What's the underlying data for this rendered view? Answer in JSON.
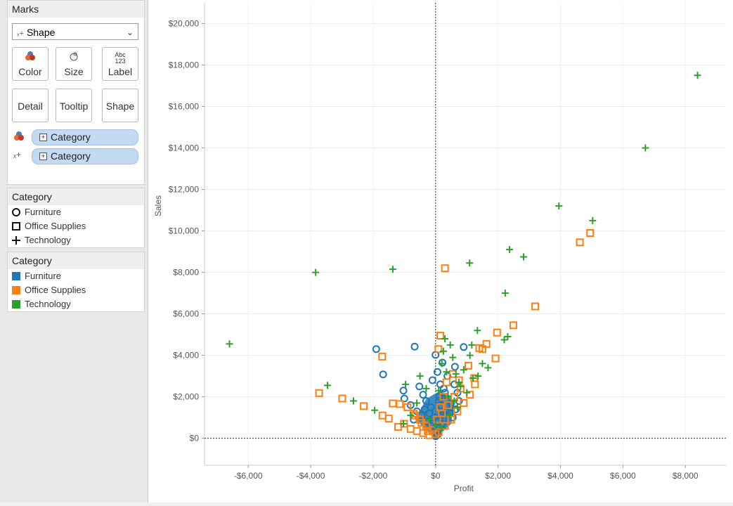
{
  "marks": {
    "title": "Marks",
    "mark_type": "Shape",
    "buttons": [
      "Color",
      "Size",
      "Label",
      "Detail",
      "Tooltip",
      "Shape"
    ],
    "label_icon_text": "Abc\n123",
    "pills": [
      {
        "icon": "color-icon",
        "label": "Category"
      },
      {
        "icon": "shape-icon",
        "label": "Category"
      }
    ]
  },
  "shape_legend": {
    "title": "Category",
    "items": [
      {
        "label": "Furniture",
        "shape": "circle"
      },
      {
        "label": "Office Supplies",
        "shape": "square"
      },
      {
        "label": "Technology",
        "shape": "plus"
      }
    ]
  },
  "color_legend": {
    "title": "Category",
    "items": [
      {
        "label": "Furniture",
        "color": "#1f77b4"
      },
      {
        "label": "Office Supplies",
        "color": "#ff7f0e"
      },
      {
        "label": "Technology",
        "color": "#2ca02c"
      }
    ]
  },
  "chart_data": {
    "type": "scatter",
    "title": "",
    "xlabel": "Profit",
    "ylabel": "Sales",
    "xlim": [
      -7400,
      9300
    ],
    "ylim": [
      -1300,
      21000
    ],
    "xticks": [
      -6000,
      -4000,
      -2000,
      0,
      2000,
      4000,
      6000,
      8000
    ],
    "xtick_labels": [
      "-$6,000",
      "-$4,000",
      "-$2,000",
      "$0",
      "$2,000",
      "$4,000",
      "$6,000",
      "$8,000"
    ],
    "yticks": [
      0,
      2000,
      4000,
      6000,
      8000,
      10000,
      12000,
      14000,
      16000,
      18000,
      20000
    ],
    "ytick_labels": [
      "$0",
      "$2,000",
      "$4,000",
      "$6,000",
      "$8,000",
      "$10,000",
      "$12,000",
      "$14,000",
      "$16,000",
      "$18,000",
      "$20,000"
    ],
    "series": [
      {
        "name": "Furniture",
        "shape": "circle",
        "color": "#1f77b4",
        "points": [
          [
            -1900,
            4300
          ],
          [
            -670,
            4420
          ],
          [
            -1680,
            3080
          ],
          [
            -3,
            4020
          ],
          [
            220,
            3650
          ],
          [
            900,
            4400
          ],
          [
            620,
            3450
          ],
          [
            -1030,
            2300
          ],
          [
            -1000,
            1920
          ],
          [
            -800,
            1600
          ],
          [
            -520,
            2500
          ],
          [
            -400,
            2100
          ],
          [
            -300,
            1800
          ],
          [
            -150,
            1500
          ],
          [
            -100,
            2800
          ],
          [
            60,
            3200
          ],
          [
            150,
            2600
          ],
          [
            300,
            2200
          ],
          [
            400,
            1900
          ],
          [
            500,
            1700
          ],
          [
            650,
            1400
          ],
          [
            -200,
            1200
          ],
          [
            -50,
            1000
          ],
          [
            50,
            800
          ],
          [
            100,
            600
          ],
          [
            180,
            1100
          ],
          [
            250,
            900
          ],
          [
            330,
            1300
          ],
          [
            -250,
            800
          ],
          [
            -150,
            600
          ],
          [
            -80,
            400
          ],
          [
            20,
            300
          ],
          [
            80,
            200
          ],
          [
            130,
            500
          ],
          [
            210,
            700
          ],
          [
            350,
            1600
          ],
          [
            450,
            1200
          ],
          [
            550,
            1000
          ],
          [
            700,
            2200
          ],
          [
            750,
            1800
          ],
          [
            600,
            2600
          ],
          [
            -350,
            1400
          ],
          [
            -450,
            1100
          ],
          [
            -600,
            1300
          ],
          [
            -700,
            900
          ],
          [
            0,
            100
          ],
          [
            40,
            150
          ],
          [
            -30,
            250
          ],
          [
            110,
            1800
          ],
          [
            260,
            2400
          ],
          [
            380,
            3000
          ],
          [
            120,
            2000
          ],
          [
            160,
            1600
          ],
          [
            200,
            1300
          ]
        ]
      },
      {
        "name": "Office Supplies",
        "shape": "square",
        "color": "#ff7f0e",
        "points": [
          [
            300,
            8200
          ],
          [
            4950,
            9900
          ],
          [
            4620,
            9450
          ],
          [
            3190,
            6360
          ],
          [
            2490,
            5450
          ],
          [
            1970,
            5100
          ],
          [
            1630,
            4550
          ],
          [
            1400,
            4350
          ],
          [
            1920,
            3850
          ],
          [
            1260,
            2600
          ],
          [
            1240,
            2900
          ],
          [
            150,
            4950
          ],
          [
            90,
            4300
          ],
          [
            -1710,
            3940
          ],
          [
            -1700,
            1100
          ],
          [
            -2300,
            1550
          ],
          [
            -2990,
            1920
          ],
          [
            -3730,
            2180
          ],
          [
            -1500,
            950
          ],
          [
            -1200,
            550
          ],
          [
            -1010,
            700
          ],
          [
            -1370,
            1680
          ],
          [
            -1150,
            1650
          ],
          [
            -800,
            450
          ],
          [
            -600,
            350
          ],
          [
            -400,
            250
          ],
          [
            -200,
            150
          ],
          [
            -700,
            1200
          ],
          [
            -500,
            900
          ],
          [
            -300,
            600
          ],
          [
            -100,
            400
          ],
          [
            100,
            300
          ],
          [
            300,
            600
          ],
          [
            500,
            900
          ],
          [
            700,
            1300
          ],
          [
            900,
            1700
          ],
          [
            1100,
            2100
          ],
          [
            800,
            2400
          ],
          [
            600,
            2000
          ],
          [
            400,
            1600
          ],
          [
            200,
            1200
          ],
          [
            -900,
            1500
          ],
          [
            -650,
            1100
          ],
          [
            350,
            2700
          ],
          [
            550,
            3100
          ],
          [
            1500,
            4300
          ],
          [
            1050,
            3500
          ],
          [
            750,
            2800
          ],
          [
            -450,
            750
          ],
          [
            -250,
            350
          ],
          [
            0,
            200
          ],
          [
            50,
            900
          ],
          [
            150,
            1500
          ],
          [
            250,
            2000
          ]
        ]
      },
      {
        "name": "Technology",
        "shape": "plus",
        "color": "#2ca02c",
        "points": [
          [
            8390,
            17500
          ],
          [
            6720,
            14000
          ],
          [
            3950,
            11200
          ],
          [
            5030,
            10500
          ],
          [
            2370,
            9100
          ],
          [
            2820,
            8750
          ],
          [
            1090,
            8450
          ],
          [
            -1370,
            8150
          ],
          [
            -3840,
            8000
          ],
          [
            2230,
            7000
          ],
          [
            -6600,
            4550
          ],
          [
            1340,
            5200
          ],
          [
            2310,
            4900
          ],
          [
            2200,
            4750
          ],
          [
            1160,
            4500
          ],
          [
            470,
            4500
          ],
          [
            300,
            4800
          ],
          [
            -3460,
            2550
          ],
          [
            -2630,
            1800
          ],
          [
            -1950,
            1350
          ],
          [
            -960,
            2600
          ],
          [
            -1030,
            700
          ],
          [
            1680,
            3400
          ],
          [
            1360,
            3000
          ],
          [
            1200,
            2900
          ],
          [
            900,
            3300
          ],
          [
            650,
            3100
          ],
          [
            350,
            3200
          ],
          [
            200,
            3600
          ],
          [
            -500,
            3000
          ],
          [
            -300,
            2400
          ],
          [
            100,
            2300
          ],
          [
            400,
            2000
          ],
          [
            600,
            1800
          ],
          [
            800,
            2500
          ],
          [
            1000,
            2200
          ],
          [
            -200,
            900
          ],
          [
            0,
            600
          ],
          [
            200,
            500
          ],
          [
            450,
            1100
          ],
          [
            700,
            1500
          ],
          [
            -600,
            1700
          ],
          [
            -800,
            1100
          ],
          [
            1500,
            3600
          ],
          [
            550,
            3900
          ],
          [
            250,
            4200
          ],
          [
            1100,
            4000
          ],
          [
            750,
            2700
          ]
        ]
      }
    ]
  }
}
